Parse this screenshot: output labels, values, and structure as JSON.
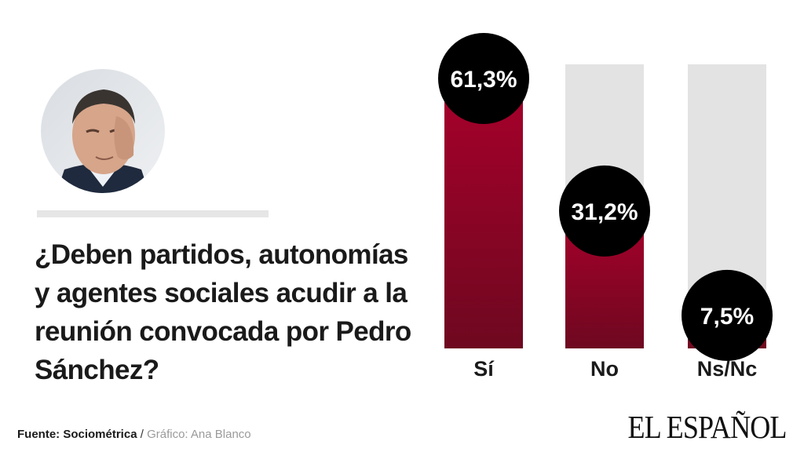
{
  "question": "¿Deben partidos, autonomías y agentes sociales acudir a la reunión convocada por Pedro Sánchez?",
  "source_label": "Fuente: Sociométrica",
  "separator": "/",
  "credit": "Gráfico: Ana Blanco",
  "brand": "EL ESPAÑOL",
  "colors": {
    "bar_fill": "#a8002b",
    "bar_track": "#e3e3e3",
    "bubble": "#000000",
    "bubble_text": "#ffffff"
  },
  "chart_data": {
    "type": "bar",
    "categories": [
      "Sí",
      "No",
      "Ns/Nc"
    ],
    "values": [
      61.3,
      31.2,
      7.5
    ],
    "value_labels": [
      "61,3%",
      "31,2%",
      "7,5%"
    ],
    "ylim": [
      0,
      61.3
    ],
    "grid": false,
    "legend": "none"
  }
}
